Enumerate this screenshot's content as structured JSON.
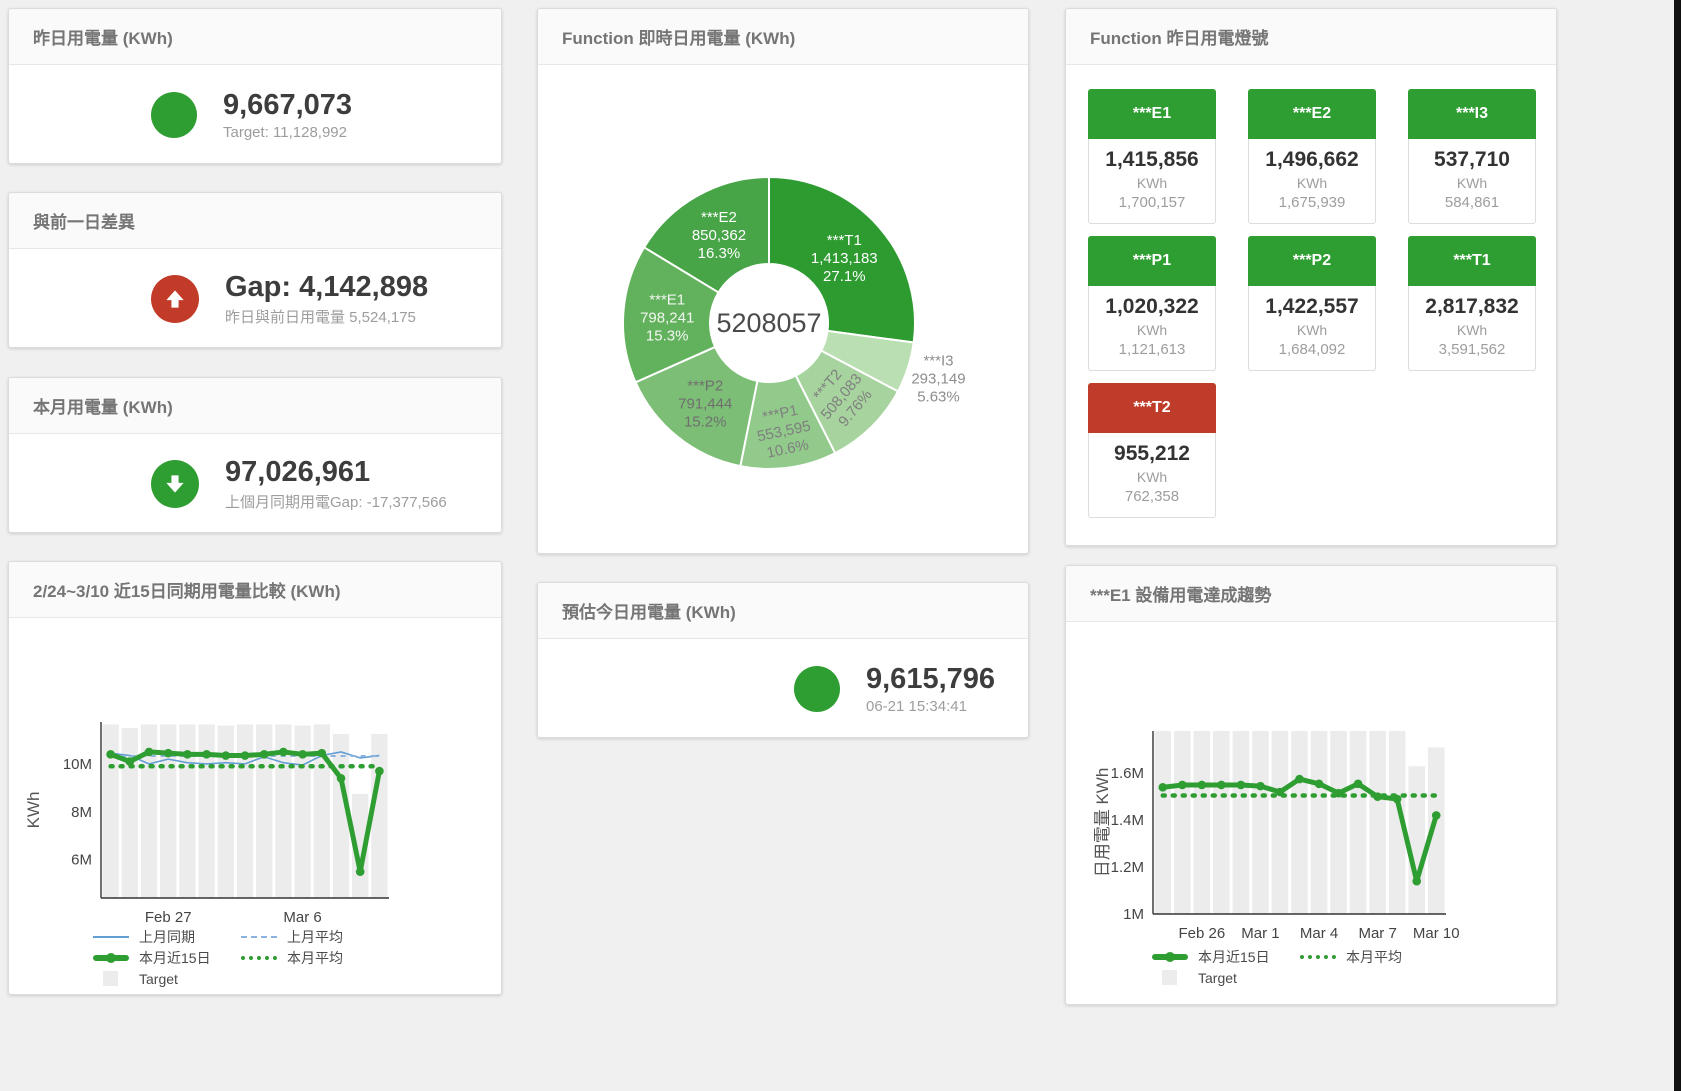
{
  "colors": {
    "green": "#2f9e32",
    "red": "#c13b28",
    "blue": "#649fd3",
    "blue_light": "#8ab4dd",
    "bar": "#ececec",
    "title_text": "#757575"
  },
  "stat_cards": {
    "yesterday": {
      "title": "昨日用電量 (KWh)",
      "value": "9,667,073",
      "subtitle": "Target: 11,128,992",
      "icon": "circle",
      "icon_color": "#2f9e32"
    },
    "day_gap": {
      "title": "與前一日差異",
      "value": "Gap: 4,142,898",
      "subtitle": "昨日與前日用電量 5,524,175",
      "icon": "arrow-up",
      "icon_color": "#c13b28"
    },
    "month": {
      "title": "本月用電量 (KWh)",
      "value": "97,026,961",
      "subtitle": "上個月同期用電Gap: -17,377,566",
      "icon": "arrow-down",
      "icon_color": "#2f9e32"
    },
    "estimate": {
      "title": "預估今日用電量 (KWh)",
      "value": "9,615,796",
      "subtitle": "06-21 15:34:41",
      "icon": "circle",
      "icon_color": "#2f9e32"
    }
  },
  "lights": {
    "title": "Function 昨日用電燈號",
    "tiles": [
      {
        "name": "***E1",
        "value": "1,415,856",
        "unit": "KWh",
        "target": "1,700,157",
        "color": "#2f9e32"
      },
      {
        "name": "***E2",
        "value": "1,496,662",
        "unit": "KWh",
        "target": "1,675,939",
        "color": "#2f9e32"
      },
      {
        "name": "***I3",
        "value": "537,710",
        "unit": "KWh",
        "target": "584,861",
        "color": "#2f9e32"
      },
      {
        "name": "***P1",
        "value": "1,020,322",
        "unit": "KWh",
        "target": "1,121,613",
        "color": "#2f9e32"
      },
      {
        "name": "***P2",
        "value": "1,422,557",
        "unit": "KWh",
        "target": "1,684,092",
        "color": "#2f9e32"
      },
      {
        "name": "***T1",
        "value": "2,817,832",
        "unit": "KWh",
        "target": "3,591,562",
        "color": "#2f9e32"
      },
      {
        "name": "***T2",
        "value": "955,212",
        "unit": "KWh",
        "target": "762,358",
        "color": "#bf3b2a"
      }
    ]
  },
  "chart_data": [
    {
      "id": "donut",
      "type": "pie",
      "title": "Function 即時日用電量 (KWh)",
      "center_label": "5208057",
      "legend_position": "none",
      "slices": [
        {
          "name": "***T1",
          "value": 1413183,
          "pct": "27.1%",
          "color": "#2e9b31",
          "text_color": "#ffffff",
          "label_r": 100,
          "rotate": 0
        },
        {
          "name": "***I3",
          "value": 293149,
          "pct": "5.63%",
          "color": "#badfb2",
          "text_color": "#8d8d8d",
          "label_r": 178,
          "rotate": 0
        },
        {
          "name": "***T2",
          "value": 508083,
          "pct": "9.76%",
          "color": "#a7d49e",
          "text_color": "#7f7f7f",
          "label_r": 102,
          "rotate": -50
        },
        {
          "name": "***P1",
          "value": 553595,
          "pct": "10.6%",
          "color": "#92ca8b",
          "text_color": "#7f7f7f",
          "label_r": 108,
          "rotate": -12
        },
        {
          "name": "***P2",
          "value": 791444,
          "pct": "15.2%",
          "color": "#7cbe76",
          "text_color": "#6f6f6f",
          "label_r": 102,
          "rotate": 0
        },
        {
          "name": "***E1",
          "value": 798241,
          "pct": "15.3%",
          "color": "#62b15c",
          "text_color": "#f2f7f1",
          "label_r": 102,
          "rotate": 0
        },
        {
          "name": "***E2",
          "value": 850362,
          "pct": "16.3%",
          "color": "#47a447",
          "text_color": "#ffffff",
          "label_r": 102,
          "rotate": 0
        }
      ]
    },
    {
      "id": "compare15",
      "type": "line",
      "title": "2/24~3/10 近15日同期用電量比較 (KWh)",
      "ylabel": "KWh",
      "ylim": [
        4400000,
        11750000
      ],
      "yticks": [
        {
          "v": 6000000,
          "label": "6M"
        },
        {
          "v": 8000000,
          "label": "8M"
        },
        {
          "v": 10000000,
          "label": "10M"
        }
      ],
      "xticks": [
        {
          "i": 3,
          "label": "Feb 27"
        },
        {
          "i": 10,
          "label": "Mar 6"
        }
      ],
      "grid": false,
      "legend_position": "bottom",
      "target_label": "Target",
      "target": [
        11650000,
        11500000,
        11650000,
        11650000,
        11650000,
        11650000,
        11600000,
        11650000,
        11650000,
        11650000,
        11600000,
        11650000,
        11250000,
        8750000,
        11250000
      ],
      "series": [
        {
          "name": "上月同期",
          "style": "solid-thin",
          "color": "#649fd3",
          "values": [
            10450000,
            10350000,
            10000000,
            10200000,
            10050000,
            10000000,
            10050000,
            10000000,
            10300000,
            10050000,
            9950000,
            10350000,
            10500000,
            10250000,
            10350000
          ]
        },
        {
          "name": "上月平均",
          "style": "dashed",
          "color": "#8ab4dd",
          "values": [
            10330000
          ]
        },
        {
          "name": "本月平均",
          "style": "dotted",
          "color": "#2f9e32",
          "values": [
            9900000
          ]
        },
        {
          "name": "本月近15日",
          "style": "thick",
          "color": "#2f9e32",
          "markers": true,
          "values": [
            10400000,
            10100000,
            10500000,
            10450000,
            10400000,
            10400000,
            10350000,
            10350000,
            10400000,
            10500000,
            10400000,
            10450000,
            9400000,
            5500000,
            9700000
          ]
        }
      ]
    },
    {
      "id": "e1trend",
      "type": "line",
      "title": "***E1 設備用電達成趨勢",
      "ylabel": "日用電量 KWh",
      "ylim": [
        1000000,
        1780000
      ],
      "yticks": [
        {
          "v": 1000000,
          "label": "1M"
        },
        {
          "v": 1200000,
          "label": "1.2M"
        },
        {
          "v": 1400000,
          "label": "1.4M"
        },
        {
          "v": 1600000,
          "label": "1.6M"
        }
      ],
      "xticks": [
        {
          "i": 2,
          "label": "Feb 26"
        },
        {
          "i": 5,
          "label": "Mar 1"
        },
        {
          "i": 8,
          "label": "Mar 4"
        },
        {
          "i": 11,
          "label": "Mar 7"
        },
        {
          "i": 14,
          "label": "Mar 10"
        }
      ],
      "grid": false,
      "legend_position": "bottom",
      "target_label": "Target",
      "target": [
        1780000,
        1780000,
        1780000,
        1780000,
        1780000,
        1780000,
        1780000,
        1780000,
        1780000,
        1780000,
        1780000,
        1780000,
        1780000,
        1630000,
        1710000
      ],
      "series": [
        {
          "name": "本月平均",
          "style": "dotted",
          "color": "#2f9e32",
          "values": [
            1505000
          ]
        },
        {
          "name": "本月近15日",
          "style": "thick",
          "color": "#2f9e32",
          "markers": true,
          "values": [
            1540000,
            1550000,
            1550000,
            1550000,
            1550000,
            1545000,
            1520000,
            1575000,
            1555000,
            1515000,
            1555000,
            1500000,
            1490000,
            1140000,
            1420000
          ]
        }
      ]
    }
  ]
}
